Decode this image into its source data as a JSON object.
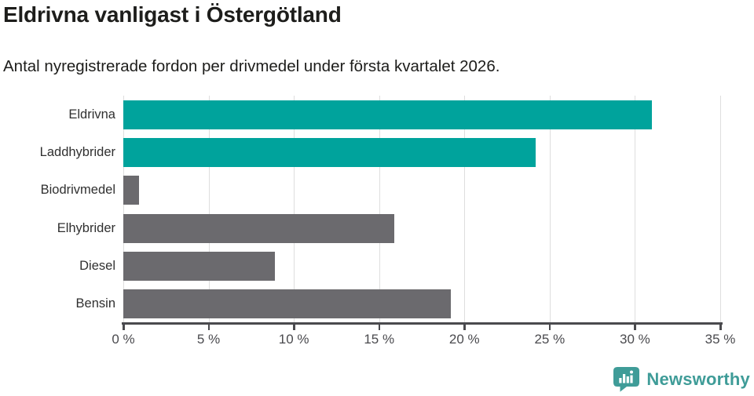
{
  "header": {
    "title": "Eldrivna vanligast i Östergötland",
    "subtitle": "Antal nyregistrerade fordon per drivmedel under första kvartalet 2026."
  },
  "chart_data": {
    "type": "bar",
    "orientation": "horizontal",
    "title": "Eldrivna vanligast i Östergötland",
    "subtitle": "Antal nyregistrerade fordon per drivmedel under första kvartalet 2026.",
    "categories": [
      "Eldrivna",
      "Laddhybrider",
      "Biodrivmedel",
      "Elhybrider",
      "Diesel",
      "Bensin"
    ],
    "values": [
      31.0,
      24.2,
      0.9,
      15.9,
      8.9,
      19.2
    ],
    "unit": "%",
    "bar_colors": [
      "#00a39c",
      "#00a39c",
      "#6b6a6e",
      "#6b6a6e",
      "#6b6a6e",
      "#6b6a6e"
    ],
    "xlabel": "",
    "ylabel": "",
    "xlim": [
      0,
      35
    ],
    "x_ticks": [
      0,
      5,
      10,
      15,
      20,
      25,
      30,
      35
    ],
    "x_tick_labels": [
      "0 %",
      "5 %",
      "10 %",
      "15 %",
      "20 %",
      "25 %",
      "30 %",
      "35 %"
    ],
    "grid": "vertical",
    "legend": "none"
  },
  "colors": {
    "highlight_teal": "#00a39c",
    "neutral_gray": "#6b6a6e",
    "gridline": "#dedede",
    "axis": "#4a4a4e",
    "text_dark": "#1d1d1b",
    "logo_teal": "#3f9c98"
  },
  "footer": {
    "brand": "Newsworthy"
  }
}
